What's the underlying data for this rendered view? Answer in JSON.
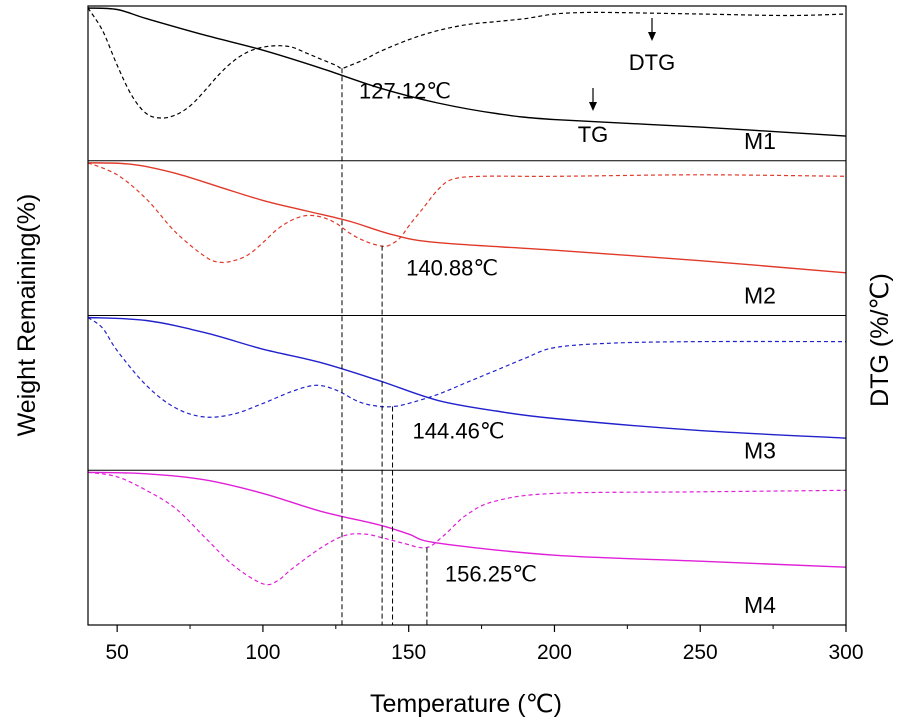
{
  "chart_data": {
    "type": "line",
    "xlabel": "Temperature (℃)",
    "ylabel": "Weight Remaining(%)",
    "y2label": "DTG (%/℃)",
    "xlim": [
      40,
      300
    ],
    "xticks": [
      50,
      100,
      150,
      200,
      250,
      300
    ],
    "grid": false,
    "legend": "none",
    "curve_labels": {
      "tg": "TG",
      "dtg": "DTG"
    },
    "panels": [
      {
        "name": "M1",
        "color": "#000000",
        "tg": [
          [
            40,
            1.0
          ],
          [
            50,
            0.99
          ],
          [
            60,
            0.93
          ],
          [
            80,
            0.82
          ],
          [
            100,
            0.72
          ],
          [
            120,
            0.6
          ],
          [
            140,
            0.47
          ],
          [
            160,
            0.37
          ],
          [
            180,
            0.3
          ],
          [
            200,
            0.26
          ],
          [
            250,
            0.21
          ],
          [
            300,
            0.15
          ]
        ],
        "dtg": [
          [
            40,
            1.0
          ],
          [
            45,
            0.85
          ],
          [
            50,
            0.62
          ],
          [
            55,
            0.42
          ],
          [
            60,
            0.3
          ],
          [
            65,
            0.27
          ],
          [
            70,
            0.29
          ],
          [
            75,
            0.35
          ],
          [
            80,
            0.45
          ],
          [
            85,
            0.56
          ],
          [
            90,
            0.65
          ],
          [
            95,
            0.71
          ],
          [
            100,
            0.74
          ],
          [
            105,
            0.75
          ],
          [
            110,
            0.74
          ],
          [
            115,
            0.7
          ],
          [
            120,
            0.66
          ],
          [
            125,
            0.62
          ],
          [
            127,
            0.6
          ],
          [
            130,
            0.62
          ],
          [
            135,
            0.66
          ],
          [
            140,
            0.71
          ],
          [
            150,
            0.79
          ],
          [
            160,
            0.85
          ],
          [
            170,
            0.89
          ],
          [
            180,
            0.91
          ],
          [
            190,
            0.93
          ],
          [
            200,
            0.96
          ],
          [
            210,
            0.97
          ],
          [
            220,
            0.97
          ],
          [
            250,
            0.96
          ],
          [
            280,
            0.95
          ],
          [
            300,
            0.96
          ]
        ],
        "peak": {
          "x": 127.12,
          "label": "127.12℃",
          "drop": 0.6
        }
      },
      {
        "name": "M2",
        "color": "#e03a2a",
        "tg": [
          [
            40,
            1.0
          ],
          [
            55,
            0.99
          ],
          [
            70,
            0.93
          ],
          [
            85,
            0.84
          ],
          [
            100,
            0.75
          ],
          [
            115,
            0.68
          ],
          [
            130,
            0.61
          ],
          [
            145,
            0.52
          ],
          [
            160,
            0.47
          ],
          [
            200,
            0.42
          ],
          [
            250,
            0.35
          ],
          [
            300,
            0.27
          ]
        ],
        "dtg": [
          [
            40,
            1.0
          ],
          [
            50,
            0.92
          ],
          [
            60,
            0.76
          ],
          [
            70,
            0.54
          ],
          [
            80,
            0.38
          ],
          [
            85,
            0.34
          ],
          [
            90,
            0.35
          ],
          [
            95,
            0.39
          ],
          [
            100,
            0.47
          ],
          [
            105,
            0.56
          ],
          [
            110,
            0.62
          ],
          [
            115,
            0.65
          ],
          [
            120,
            0.64
          ],
          [
            125,
            0.6
          ],
          [
            130,
            0.53
          ],
          [
            135,
            0.48
          ],
          [
            140,
            0.45
          ],
          [
            143,
            0.45
          ],
          [
            147,
            0.5
          ],
          [
            150,
            0.58
          ],
          [
            155,
            0.7
          ],
          [
            160,
            0.82
          ],
          [
            165,
            0.89
          ],
          [
            175,
            0.91
          ],
          [
            200,
            0.91
          ],
          [
            250,
            0.92
          ],
          [
            300,
            0.91
          ]
        ],
        "peak": {
          "x": 140.88,
          "label": "140.88℃",
          "drop": 0.45
        }
      },
      {
        "name": "M3",
        "color": "#2222cc",
        "tg": [
          [
            40,
            1.0
          ],
          [
            60,
            0.98
          ],
          [
            80,
            0.9
          ],
          [
            100,
            0.79
          ],
          [
            120,
            0.7
          ],
          [
            140,
            0.58
          ],
          [
            160,
            0.45
          ],
          [
            180,
            0.38
          ],
          [
            200,
            0.33
          ],
          [
            250,
            0.25
          ],
          [
            300,
            0.2
          ]
        ],
        "dtg": [
          [
            40,
            1.0
          ],
          [
            45,
            0.93
          ],
          [
            50,
            0.78
          ],
          [
            60,
            0.55
          ],
          [
            70,
            0.4
          ],
          [
            80,
            0.34
          ],
          [
            90,
            0.36
          ],
          [
            100,
            0.43
          ],
          [
            110,
            0.51
          ],
          [
            118,
            0.55
          ],
          [
            125,
            0.52
          ],
          [
            133,
            0.44
          ],
          [
            140,
            0.41
          ],
          [
            145,
            0.41
          ],
          [
            150,
            0.43
          ],
          [
            160,
            0.49
          ],
          [
            170,
            0.57
          ],
          [
            180,
            0.65
          ],
          [
            190,
            0.73
          ],
          [
            200,
            0.8
          ],
          [
            220,
            0.83
          ],
          [
            250,
            0.84
          ],
          [
            300,
            0.84
          ]
        ],
        "peak": {
          "x": 144.46,
          "label": "144.46℃",
          "drop": 0.41
        }
      },
      {
        "name": "M4",
        "color": "#e020d8",
        "tg": [
          [
            40,
            1.0
          ],
          [
            60,
            0.99
          ],
          [
            80,
            0.95
          ],
          [
            100,
            0.86
          ],
          [
            120,
            0.74
          ],
          [
            140,
            0.65
          ],
          [
            150,
            0.59
          ],
          [
            160,
            0.53
          ],
          [
            200,
            0.45
          ],
          [
            250,
            0.41
          ],
          [
            300,
            0.37
          ]
        ],
        "dtg": [
          [
            40,
            1.0
          ],
          [
            50,
            0.97
          ],
          [
            60,
            0.88
          ],
          [
            70,
            0.76
          ],
          [
            80,
            0.57
          ],
          [
            90,
            0.38
          ],
          [
            100,
            0.26
          ],
          [
            105,
            0.28
          ],
          [
            110,
            0.36
          ],
          [
            120,
            0.5
          ],
          [
            128,
            0.58
          ],
          [
            135,
            0.59
          ],
          [
            142,
            0.56
          ],
          [
            148,
            0.53
          ],
          [
            156,
            0.5
          ],
          [
            162,
            0.58
          ],
          [
            170,
            0.72
          ],
          [
            180,
            0.81
          ],
          [
            200,
            0.86
          ],
          [
            250,
            0.87
          ],
          [
            300,
            0.88
          ]
        ],
        "peak": {
          "x": 156.25,
          "label": "156.25℃",
          "drop": 0.5
        }
      }
    ]
  }
}
